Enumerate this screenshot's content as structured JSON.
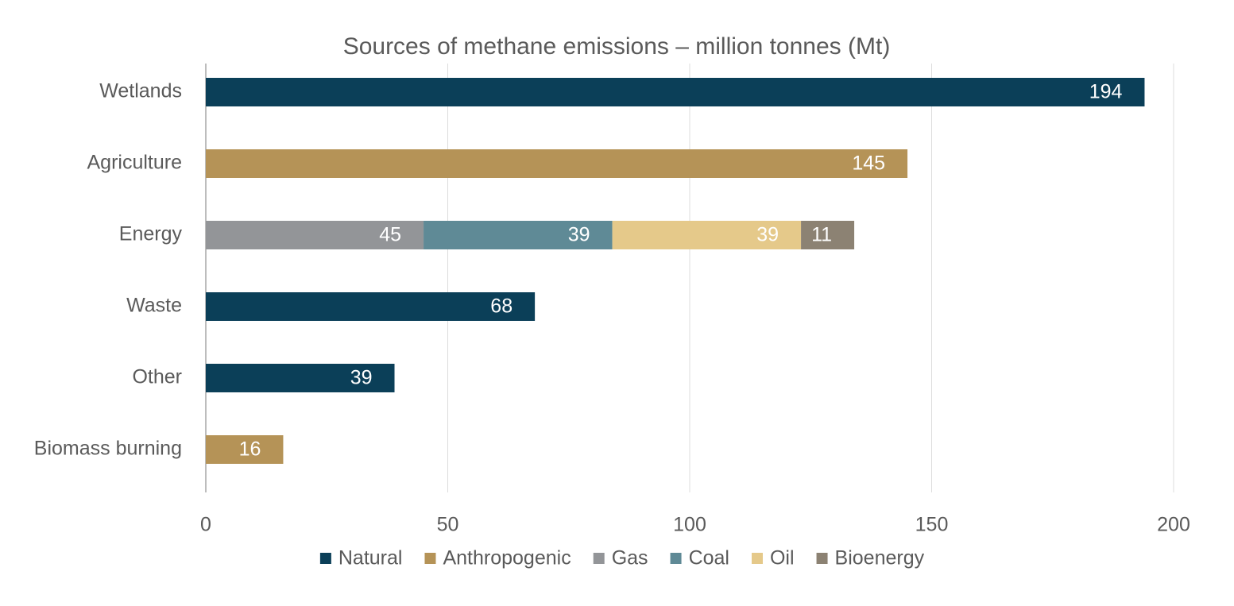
{
  "chart_data": {
    "type": "bar",
    "orientation": "horizontal",
    "stacked": true,
    "title": "Sources of methane emissions – million tonnes (Mt)",
    "categories": [
      "Wetlands",
      "Agriculture",
      "Energy",
      "Waste",
      "Other",
      "Biomass burning"
    ],
    "series": [
      {
        "name": "Natural",
        "color": "#0b3f58",
        "values": [
          194,
          null,
          null,
          68,
          39,
          null
        ]
      },
      {
        "name": "Anthropogenic",
        "color": "#b59357",
        "values": [
          null,
          145,
          null,
          null,
          null,
          16
        ]
      },
      {
        "name": "Gas",
        "color": "#939598",
        "values": [
          null,
          null,
          45,
          null,
          null,
          null
        ]
      },
      {
        "name": "Coal",
        "color": "#5f8a96",
        "values": [
          null,
          null,
          39,
          null,
          null,
          null
        ]
      },
      {
        "name": "Oil",
        "color": "#e5c98a",
        "values": [
          null,
          null,
          39,
          null,
          null,
          null
        ]
      },
      {
        "name": "Bioenergy",
        "color": "#8c8273",
        "values": [
          null,
          null,
          11,
          null,
          null,
          null
        ]
      }
    ],
    "xlim": [
      0,
      200
    ],
    "xticks": [
      0,
      50,
      100,
      150,
      200
    ],
    "grid": true,
    "legend": "bottom"
  }
}
